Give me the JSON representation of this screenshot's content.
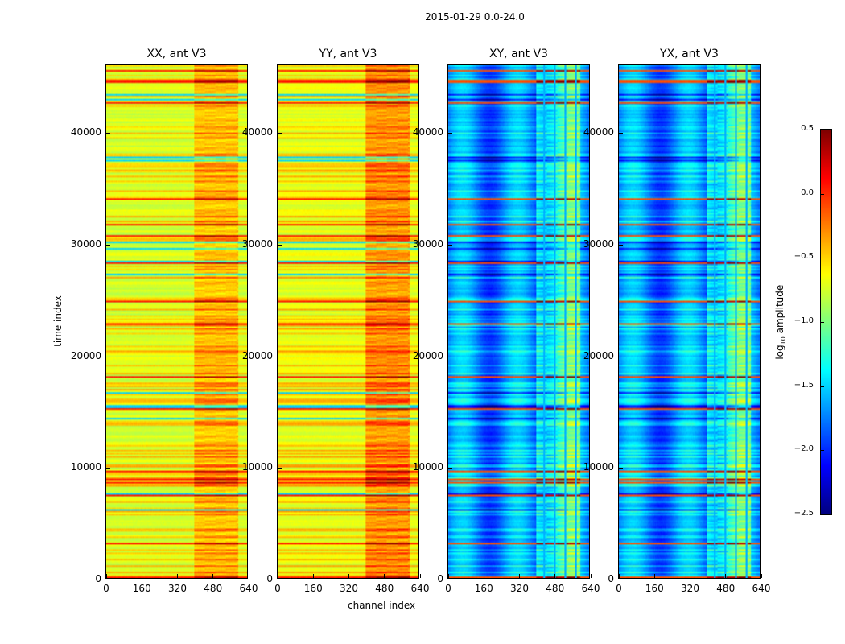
{
  "chart_data": {
    "type": "heatmap",
    "suptitle": "2015-01-29 0.0-24.0",
    "xlabel": "channel index",
    "ylabel": "time index",
    "xlim": [
      0,
      640
    ],
    "ylim": [
      0,
      46080
    ],
    "xticks": [
      "0",
      "160",
      "320",
      "480",
      "640"
    ],
    "yticks": [
      "0",
      "10000",
      "20000",
      "30000",
      "40000"
    ],
    "panels": [
      {
        "title": "XX, ant V3",
        "base_level": -0.75,
        "hot_channels": [
          400,
          600
        ],
        "hot_boost": 0.35
      },
      {
        "title": "YY, ant V3",
        "base_level": -0.7,
        "hot_channels": [
          400,
          600
        ],
        "hot_boost": 0.45
      },
      {
        "title": "XY, ant V3",
        "base_level": -1.75,
        "hot_channels": [
          400,
          600
        ],
        "hot_boost": 0.6
      },
      {
        "title": "YX, ant V3",
        "base_level": -1.75,
        "hot_channels": [
          400,
          600
        ],
        "hot_boost": 0.6
      }
    ],
    "colorbar": {
      "label_prefix": "log",
      "label_sub": "10",
      "label_suffix": " amplitude",
      "range": [
        -2.5,
        0.5
      ],
      "ticks": [
        "0.5",
        "0.0",
        "−0.5",
        "−1.0",
        "−1.5",
        "−2.0",
        "−2.5"
      ],
      "colormap": "jet"
    }
  }
}
